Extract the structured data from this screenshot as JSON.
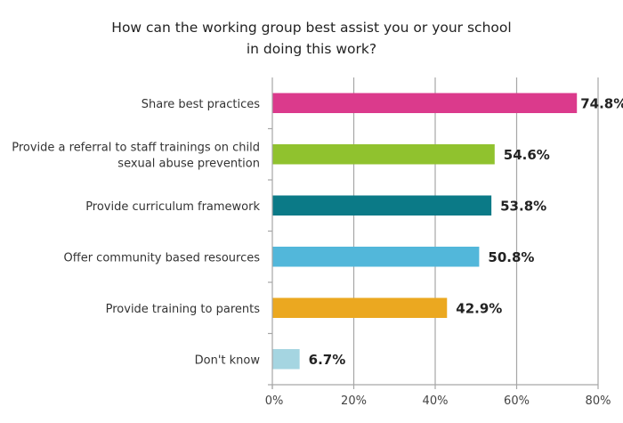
{
  "chart_data": {
    "type": "bar",
    "orientation": "horizontal",
    "title": [
      "How can the working group best assist you or your school",
      "in doing this work?"
    ],
    "categories": [
      [
        "Share best practices"
      ],
      [
        "Provide a referral to staff trainings on child",
        "sexual abuse prevention"
      ],
      [
        "Provide curriculum framework"
      ],
      [
        "Offer community based resources"
      ],
      [
        "Provide training to parents"
      ],
      [
        "Don't know"
      ]
    ],
    "values": [
      74.8,
      54.6,
      53.8,
      50.8,
      42.9,
      6.7
    ],
    "value_labels": [
      "74.8%",
      "54.6%",
      "53.8%",
      "50.8%",
      "42.9%",
      "6.7%"
    ],
    "colors": [
      "#DB3A8C",
      "#90C22E",
      "#0B7A87",
      "#52B7DA",
      "#EBA820",
      "#A5D5E1"
    ],
    "xlim": [
      0,
      80
    ],
    "xticks": [
      "0%",
      "20%",
      "40%",
      "60%",
      "80%"
    ],
    "xtick_values": [
      0,
      20,
      40,
      60,
      80
    ],
    "xlabel": "",
    "ylabel": "",
    "grid": "vertical",
    "legend": "none"
  }
}
